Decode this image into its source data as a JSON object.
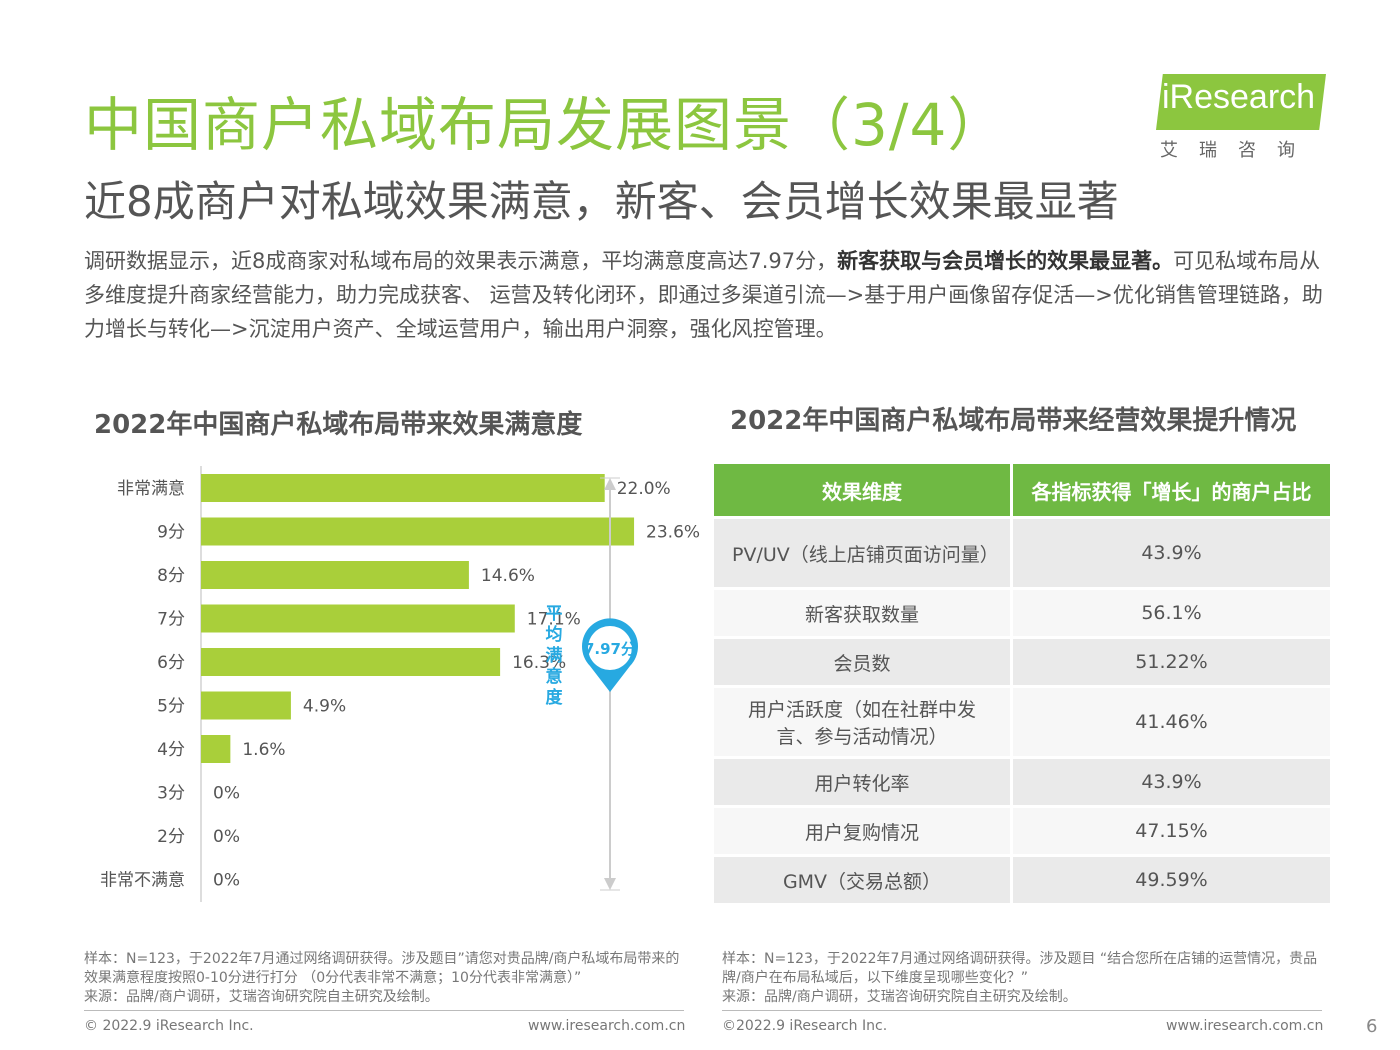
{
  "header": {
    "title": "中国商户私域布局发展图景（3/4）",
    "subtitle": "近8成商户对私域效果满意，新客、会员增长效果最显著",
    "intro_part1": "调研数据显示，近8成商家对私域布局的效果表示满意，平均满意度高达7.97分，",
    "intro_bold": "新客获取与会员增长的效果最显著。",
    "intro_part2": "可见私域布局从多维度提升商家经营能力，助力完成获客、 运营及转化闭环，即通过多渠道引流—>基于用户画像留存促活—>优化销售管理链路，助力增长与转化—>沉淀用户资产、全域运营用户，输出用户洞察，强化风控管理。"
  },
  "logo": {
    "text": "iResearch",
    "cn": "艾瑞咨询"
  },
  "left_panel": {
    "title": "2022年中国商户私域布局带来效果满意度",
    "avg_label": "平均满意度",
    "avg_value": "7.97分"
  },
  "chart_data": {
    "type": "bar",
    "orientation": "horizontal",
    "title": "2022年中国商户私域布局带来效果满意度",
    "categories": [
      "非常满意",
      "9分",
      "8分",
      "7分",
      "6分",
      "5分",
      "4分",
      "3分",
      "2分",
      "非常不满意"
    ],
    "values": [
      22.0,
      23.6,
      14.6,
      17.1,
      16.3,
      4.9,
      1.6,
      0,
      0,
      0
    ],
    "value_labels": [
      "22.0%",
      "23.6%",
      "14.6%",
      "17.1%",
      "16.3%",
      "4.9%",
      "1.6%",
      "0%",
      "0%",
      "0%"
    ],
    "unit": "%",
    "xlim": [
      0,
      25
    ],
    "bar_color": "#a9cf3a",
    "grid": false
  },
  "right_panel": {
    "title": "2022年中国商户私域布局带来经营效果提升情况",
    "col1": "效果维度",
    "col2": "各指标获得「增长」的商户占比",
    "rows": [
      {
        "dim": "PV/UV（线上店铺页面访问量）",
        "val": "43.9%"
      },
      {
        "dim": "新客获取数量",
        "val": "56.1%"
      },
      {
        "dim": "会员数",
        "val": "51.22%"
      },
      {
        "dim": "用户活跃度（如在社群中发言、参与活动情况）",
        "val": "41.46%"
      },
      {
        "dim": "用户转化率",
        "val": "43.9%"
      },
      {
        "dim": "用户复购情况",
        "val": "47.15%"
      },
      {
        "dim": "GMV（交易总额）",
        "val": "49.59%"
      }
    ]
  },
  "notes": {
    "left": "样本：N=123，于2022年7月通过网络调研获得。涉及题目”请您对贵品牌/商户私域布局带来的效果满意程度按照0-10分进行打分 （0分代表非常不满意；10分代表非常满意）”",
    "left_source": "来源：品牌/商户调研，艾瑞咨询研究院自主研究及绘制。",
    "right": "样本：N=123，于2022年7月通过网络调研获得。涉及题目 “结合您所在店铺的运营情况，贵品牌/商户在布局私域后，以下维度呈现哪些变化？”",
    "right_source": "来源：品牌/商户调研，艾瑞咨询研究院自主研究及绘制。"
  },
  "footer": {
    "copyright_left": "© 2022.9 iResearch Inc.",
    "url_left": "www.iresearch.com.cn",
    "copyright_right": "©2022.9 iResearch Inc.",
    "url_right": "www.iresearch.com.cn",
    "page": "6"
  },
  "colors": {
    "brand_green": "#8cc63f",
    "bar_green": "#a9cf3a",
    "table_header": "#6fb943",
    "accent_blue": "#27a9e1"
  }
}
